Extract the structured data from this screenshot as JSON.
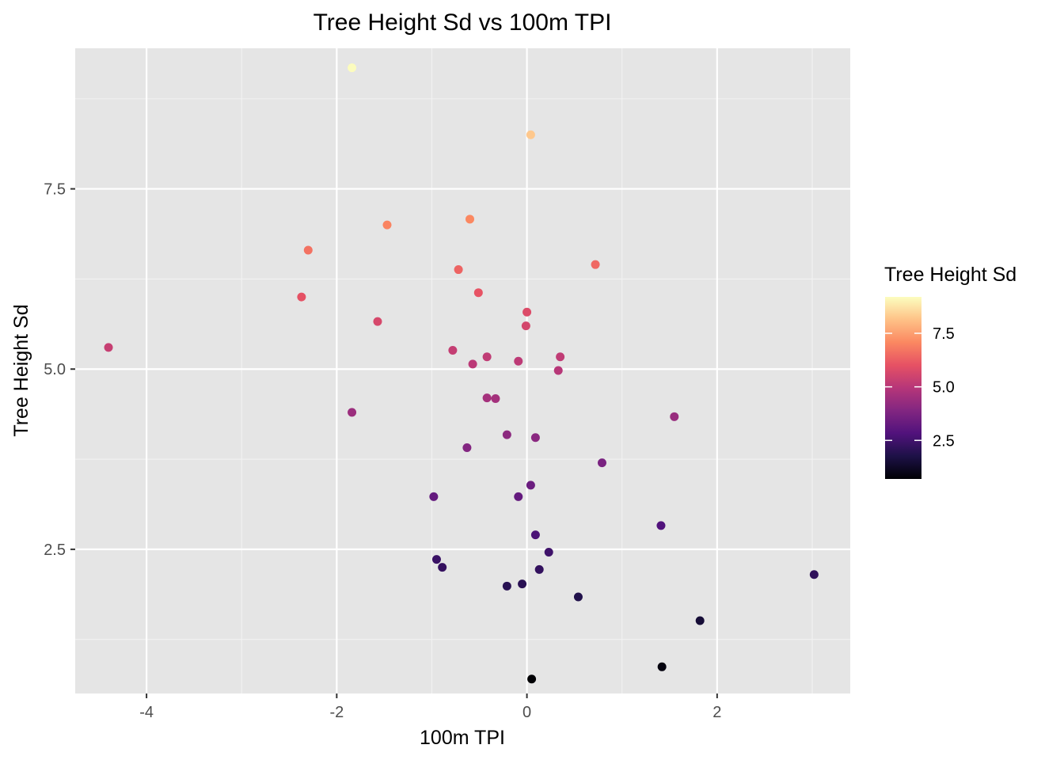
{
  "chart_data": {
    "type": "scatter",
    "title": "Tree Height Sd vs 100m TPI",
    "xlabel": "100m TPI",
    "ylabel": "Tree Height Sd",
    "xlim": [
      -4.75,
      3.4
    ],
    "ylim": [
      0.5,
      9.45
    ],
    "x_ticks": [
      -4,
      -2,
      0,
      2
    ],
    "x_tick_labels": [
      "-4",
      "-2",
      "0",
      "2"
    ],
    "y_ticks": [
      2.5,
      5.0,
      7.5
    ],
    "y_tick_labels": [
      "2.5",
      "5.0",
      "7.5"
    ],
    "grid": true,
    "color_scale": {
      "title": "Tree Height Sd",
      "palette": "magma",
      "range": [
        0.7,
        9.2
      ],
      "ticks": [
        2.5,
        5.0,
        7.5
      ],
      "tick_labels": [
        "2.5",
        "5.0",
        "7.5"
      ],
      "stops": [
        "#000004",
        "#1d1147",
        "#51127c",
        "#822681",
        "#b63679",
        "#e65164",
        "#fb8861",
        "#fec287",
        "#fcfdbf"
      ]
    },
    "legend_position": "right",
    "points": [
      {
        "x": -1.84,
        "y": 9.18
      },
      {
        "x": 0.04,
        "y": 8.25
      },
      {
        "x": -0.6,
        "y": 7.08
      },
      {
        "x": -1.47,
        "y": 7.0
      },
      {
        "x": -2.3,
        "y": 6.65
      },
      {
        "x": 0.72,
        "y": 6.45
      },
      {
        "x": -0.72,
        "y": 6.38
      },
      {
        "x": -2.37,
        "y": 6.0
      },
      {
        "x": -0.51,
        "y": 6.06
      },
      {
        "x": 0.0,
        "y": 5.79
      },
      {
        "x": -1.57,
        "y": 5.66
      },
      {
        "x": -0.01,
        "y": 5.6
      },
      {
        "x": -4.4,
        "y": 5.3
      },
      {
        "x": -0.78,
        "y": 5.26
      },
      {
        "x": -0.42,
        "y": 5.17
      },
      {
        "x": 0.35,
        "y": 5.17
      },
      {
        "x": -0.09,
        "y": 5.11
      },
      {
        "x": -0.57,
        "y": 5.07
      },
      {
        "x": 0.33,
        "y": 4.98
      },
      {
        "x": -0.42,
        "y": 4.6
      },
      {
        "x": -0.33,
        "y": 4.59
      },
      {
        "x": -1.84,
        "y": 4.4
      },
      {
        "x": 1.55,
        "y": 4.34
      },
      {
        "x": -0.21,
        "y": 4.09
      },
      {
        "x": 0.09,
        "y": 4.05
      },
      {
        "x": -0.63,
        "y": 3.91
      },
      {
        "x": 0.79,
        "y": 3.7
      },
      {
        "x": 0.04,
        "y": 3.39
      },
      {
        "x": -0.98,
        "y": 3.23
      },
      {
        "x": -0.09,
        "y": 3.23
      },
      {
        "x": 1.41,
        "y": 2.83
      },
      {
        "x": 0.09,
        "y": 2.7
      },
      {
        "x": 0.23,
        "y": 2.46
      },
      {
        "x": -0.95,
        "y": 2.36
      },
      {
        "x": -0.89,
        "y": 2.25
      },
      {
        "x": 0.13,
        "y": 2.22
      },
      {
        "x": 3.02,
        "y": 2.15
      },
      {
        "x": -0.05,
        "y": 2.02
      },
      {
        "x": -0.21,
        "y": 1.99
      },
      {
        "x": 0.54,
        "y": 1.84
      },
      {
        "x": 1.82,
        "y": 1.51
      },
      {
        "x": 1.42,
        "y": 0.87
      },
      {
        "x": 0.05,
        "y": 0.7
      }
    ]
  }
}
